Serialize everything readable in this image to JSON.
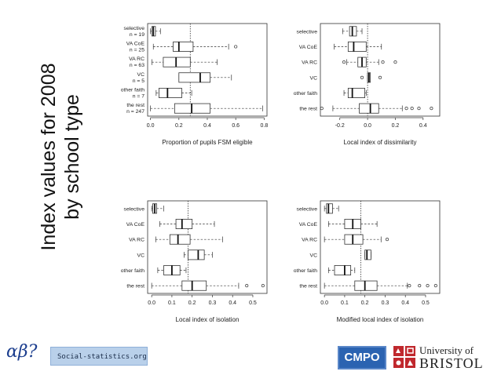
{
  "slide": {
    "title_line1": "Index values for 2008",
    "title_line2": "by school type"
  },
  "footer": {
    "logo_symbol": "αβ?",
    "social_label": "Social-statistics.org",
    "cmpo_label": "CMPO",
    "bristol_line1": "University of",
    "bristol_line2": "BRISTOL",
    "colors": {
      "social_bg": "#b9d0ea",
      "cmpo_bg": "#2b63b1",
      "crest_red": "#c0282d"
    }
  },
  "chart_data": [
    {
      "type": "boxplot",
      "orientation": "horizontal",
      "xlabel": "Proportion of pupils FSM eligible",
      "xlim": [
        -0.02,
        0.82
      ],
      "xticks": [
        0.0,
        0.2,
        0.4,
        0.6,
        0.8
      ],
      "tick_labels": [
        "0.0",
        "0.2",
        "0.4",
        "0.6",
        "0.8"
      ],
      "reference_line": 0.28,
      "categories": [
        {
          "label": "selective",
          "n": "n =  19",
          "whisker_lo": 0.0,
          "q1": 0.01,
          "median": 0.02,
          "q3": 0.035,
          "whisker_hi": 0.07,
          "outliers": []
        },
        {
          "label": "VA CoE",
          "n": "n =  25",
          "whisker_lo": 0.02,
          "q1": 0.16,
          "median": 0.2,
          "q3": 0.3,
          "whisker_hi": 0.55,
          "outliers": [
            0.6
          ]
        },
        {
          "label": "VA RC",
          "n": "n =  63",
          "whisker_lo": 0.01,
          "q1": 0.09,
          "median": 0.18,
          "q3": 0.28,
          "whisker_hi": 0.47,
          "outliers": []
        },
        {
          "label": "VC",
          "n": "n =  5",
          "whisker_lo": 0.2,
          "q1": 0.2,
          "median": 0.35,
          "q3": 0.42,
          "whisker_hi": 0.57,
          "outliers": []
        },
        {
          "label": "other faith",
          "n": "n =  7",
          "whisker_lo": 0.04,
          "q1": 0.06,
          "median": 0.12,
          "q3": 0.22,
          "whisker_hi": 0.29,
          "outliers": []
        },
        {
          "label": "the rest",
          "n": "n =  247",
          "whisker_lo": 0.0,
          "q1": 0.17,
          "median": 0.29,
          "q3": 0.42,
          "whisker_hi": 0.79,
          "outliers": []
        }
      ]
    },
    {
      "type": "boxplot",
      "orientation": "horizontal",
      "xlabel": "Local index of dissimilarity",
      "xlim": [
        -0.34,
        0.52
      ],
      "xticks": [
        -0.2,
        0.0,
        0.2,
        0.4
      ],
      "tick_labels": [
        "-0.2",
        "0.0",
        "0.2",
        "0.4"
      ],
      "reference_line": 0.0,
      "categories": [
        {
          "label": "selective",
          "n": "",
          "whisker_lo": -0.18,
          "q1": -0.13,
          "median": -0.11,
          "q3": -0.08,
          "whisker_hi": -0.04,
          "outliers": []
        },
        {
          "label": "VA CoE",
          "n": "",
          "whisker_lo": -0.24,
          "q1": -0.14,
          "median": -0.1,
          "q3": -0.01,
          "whisker_hi": 0.1,
          "outliers": []
        },
        {
          "label": "VA RC",
          "n": "",
          "whisker_lo": -0.15,
          "q1": -0.07,
          "median": -0.04,
          "q3": -0.01,
          "whisker_hi": 0.08,
          "outliers": [
            -0.17,
            0.11,
            0.2
          ]
        },
        {
          "label": "VC",
          "n": "",
          "whisker_lo": 0.0,
          "q1": 0.0,
          "median": 0.01,
          "q3": 0.02,
          "whisker_hi": 0.02,
          "outliers": [
            -0.04,
            0.09
          ]
        },
        {
          "label": "other faith",
          "n": "",
          "whisker_lo": -0.17,
          "q1": -0.14,
          "median": -0.11,
          "q3": -0.02,
          "whisker_hi": -0.01,
          "outliers": []
        },
        {
          "label": "the rest",
          "n": "",
          "whisker_lo": -0.25,
          "q1": -0.06,
          "median": 0.02,
          "q3": 0.08,
          "whisker_hi": 0.25,
          "outliers": [
            -0.33,
            0.28,
            0.32,
            0.37,
            0.46
          ]
        }
      ]
    },
    {
      "type": "boxplot",
      "orientation": "horizontal",
      "xlabel": "Local index of isolation",
      "xlim": [
        -0.02,
        0.57
      ],
      "xticks": [
        0.0,
        0.1,
        0.2,
        0.3,
        0.4,
        0.5
      ],
      "tick_labels": [
        "0.0",
        "0.1",
        "0.2",
        "0.3",
        "0.4",
        "0.5"
      ],
      "reference_line": 0.18,
      "categories": [
        {
          "label": "selective",
          "n": "",
          "whisker_lo": 0.0,
          "q1": 0.005,
          "median": 0.015,
          "q3": 0.025,
          "whisker_hi": 0.06,
          "outliers": []
        },
        {
          "label": "VA CoE",
          "n": "",
          "whisker_lo": 0.04,
          "q1": 0.12,
          "median": 0.15,
          "q3": 0.2,
          "whisker_hi": 0.31,
          "outliers": []
        },
        {
          "label": "VA RC",
          "n": "",
          "whisker_lo": 0.02,
          "q1": 0.09,
          "median": 0.13,
          "q3": 0.19,
          "whisker_hi": 0.35,
          "outliers": []
        },
        {
          "label": "VC",
          "n": "",
          "whisker_lo": 0.16,
          "q1": 0.18,
          "median": 0.23,
          "q3": 0.26,
          "whisker_hi": 0.3,
          "outliers": []
        },
        {
          "label": "other faith",
          "n": "",
          "whisker_lo": 0.03,
          "q1": 0.06,
          "median": 0.1,
          "q3": 0.14,
          "whisker_hi": 0.17,
          "outliers": []
        },
        {
          "label": "the rest",
          "n": "",
          "whisker_lo": 0.0,
          "q1": 0.15,
          "median": 0.2,
          "q3": 0.27,
          "whisker_hi": 0.43,
          "outliers": [
            0.47,
            0.55
          ]
        }
      ]
    },
    {
      "type": "boxplot",
      "orientation": "horizontal",
      "xlabel": "Modified local index of isolation",
      "xlim": [
        -0.02,
        0.57
      ],
      "xticks": [
        0.0,
        0.1,
        0.2,
        0.3,
        0.4,
        0.5
      ],
      "tick_labels": [
        "0.0",
        "0.1",
        "0.2",
        "0.3",
        "0.4",
        "0.5"
      ],
      "reference_line": 0.18,
      "categories": [
        {
          "label": "selective",
          "n": "",
          "whisker_lo": 0.0,
          "q1": 0.01,
          "median": 0.02,
          "q3": 0.04,
          "whisker_hi": 0.07,
          "outliers": []
        },
        {
          "label": "VA CoE",
          "n": "",
          "whisker_lo": 0.02,
          "q1": 0.1,
          "median": 0.14,
          "q3": 0.18,
          "whisker_hi": 0.26,
          "outliers": []
        },
        {
          "label": "VA RC",
          "n": "",
          "whisker_lo": 0.0,
          "q1": 0.1,
          "median": 0.14,
          "q3": 0.19,
          "whisker_hi": 0.28,
          "outliers": [
            0.31
          ]
        },
        {
          "label": "VC",
          "n": "",
          "whisker_lo": 0.2,
          "q1": 0.2,
          "median": 0.21,
          "q3": 0.23,
          "whisker_hi": 0.23,
          "outliers": []
        },
        {
          "label": "other faith",
          "n": "",
          "whisker_lo": 0.02,
          "q1": 0.05,
          "median": 0.1,
          "q3": 0.13,
          "whisker_hi": 0.15,
          "outliers": []
        },
        {
          "label": "the rest",
          "n": "",
          "whisker_lo": 0.0,
          "q1": 0.15,
          "median": 0.2,
          "q3": 0.26,
          "whisker_hi": 0.41,
          "outliers": [
            0.42,
            0.47,
            0.51,
            0.55
          ]
        }
      ]
    }
  ]
}
